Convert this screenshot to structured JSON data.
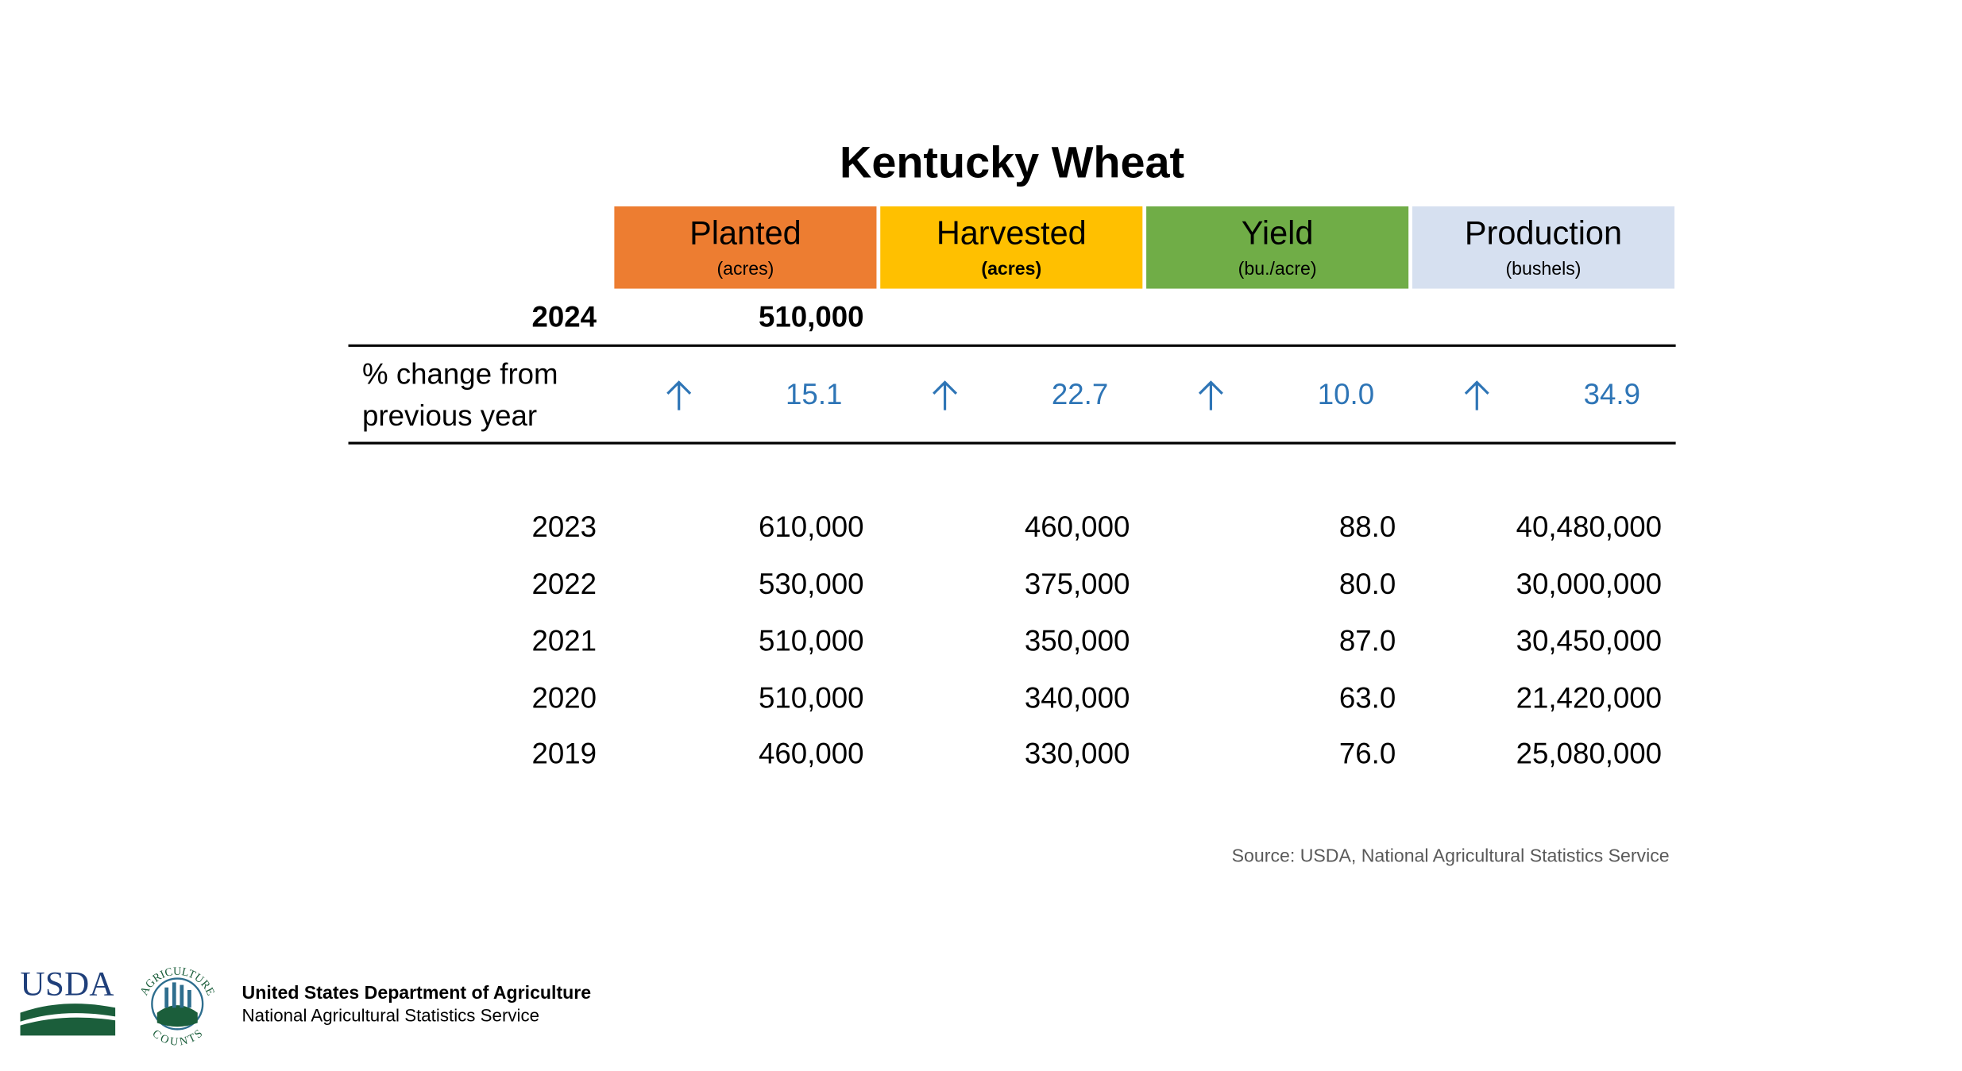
{
  "title": "Kentucky Wheat",
  "columns": [
    {
      "name": "Planted",
      "unit": "(acres)"
    },
    {
      "name": "Harvested",
      "unit": "(acres)"
    },
    {
      "name": "Yield",
      "unit": "(bu./acre)"
    },
    {
      "name": "Production",
      "unit": "(bushels)"
    }
  ],
  "current": {
    "year": "2024",
    "values": [
      "510,000"
    ]
  },
  "change": {
    "label_lines": [
      "% change from",
      "previous year"
    ],
    "values": [
      "15.1",
      "22.7",
      "10.0",
      "34.9"
    ]
  },
  "rows": [
    [
      "2023",
      "610,000",
      "460,000",
      "88.0",
      "40,480,000"
    ],
    [
      "2022",
      "530,000",
      "375,000",
      "80.0",
      "30,000,000"
    ],
    [
      "2021",
      "510,000",
      "350,000",
      "87.0",
      "30,450,000"
    ],
    [
      "2020",
      "510,000",
      "340,000",
      "63.0",
      "21,420,000"
    ],
    [
      "2019",
      "460,000",
      "330,000",
      "76.0",
      "25,080,000"
    ]
  ],
  "source": "Source: USDA, National Agricultural Statistics Service",
  "footer": {
    "logo": "USDA",
    "seal_top": "AGRICULTURE",
    "seal_bottom": "COUNTS",
    "agency": "United States Department of Agriculture",
    "service": "National Agricultural Statistics Service"
  }
}
